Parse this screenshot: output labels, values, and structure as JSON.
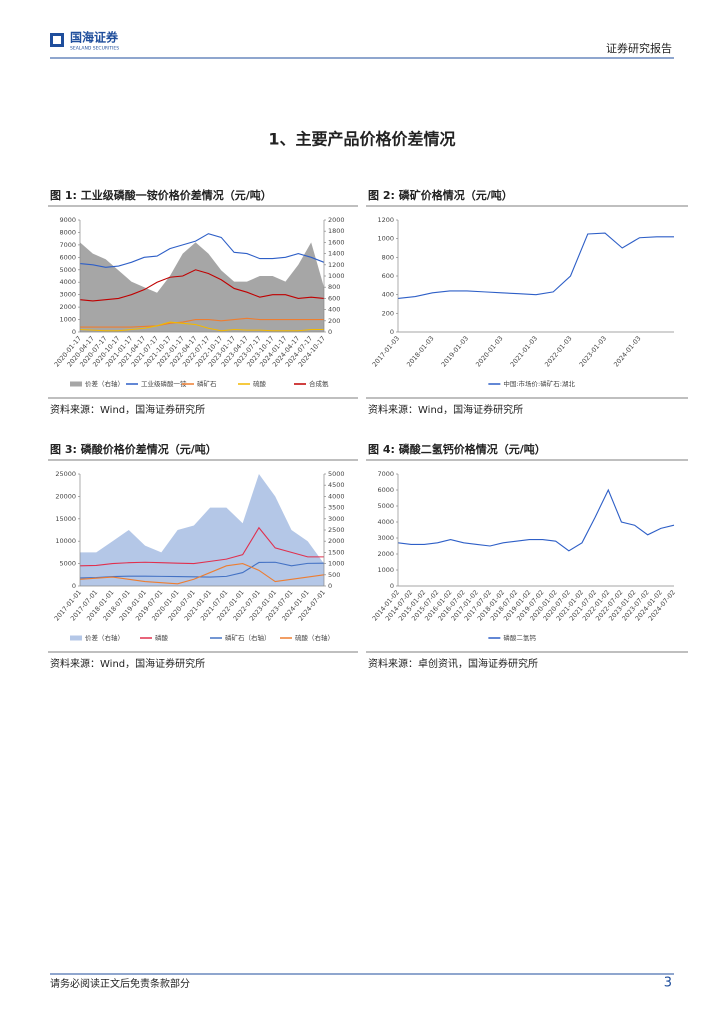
{
  "header": {
    "logo": "国海证券",
    "logo_sub": "SEALAND SECURITIES",
    "report_type": "证券研究报告"
  },
  "section_title": "1、主要产品价格价差情况",
  "chart_data": [
    {
      "type": "line",
      "title": "图 1:  工业级磷酸一铵价格价差情况（元/吨）",
      "source": "资料来源：Wind，国海证券研究所",
      "categories": [
        "2020-01-17",
        "2020-04-17",
        "2020-07-17",
        "2020-10-17",
        "2021-01-17",
        "2021-04-17",
        "2021-07-17",
        "2021-10-17",
        "2022-01-17",
        "2022-04-17",
        "2022-07-17",
        "2022-10-17",
        "2023-01-17",
        "2023-04-17",
        "2023-07-17",
        "2023-10-17",
        "2024-01-17",
        "2024-04-17",
        "2024-07-17",
        "2024-10-17"
      ],
      "ylim": [
        0,
        9000
      ],
      "yticks": [
        0,
        1000,
        2000,
        3000,
        4000,
        5000,
        6000,
        7000,
        8000,
        9000
      ],
      "y2lim": [
        0,
        2000
      ],
      "y2ticks": [
        0,
        200,
        400,
        600,
        800,
        1000,
        1200,
        1400,
        1600,
        1800,
        2000
      ],
      "series": [
        {
          "name": "价差（右轴）",
          "color": "#a6a6a6",
          "fill": true,
          "axis": "y2",
          "values": [
            1600,
            1400,
            1300,
            1100,
            900,
            800,
            700,
            1000,
            1400,
            1600,
            1400,
            1100,
            900,
            900,
            1000,
            1000,
            900,
            1200,
            1600,
            800
          ]
        },
        {
          "name": "工业级磷酸一铵",
          "color": "#2e5fc7",
          "values": [
            5500,
            5400,
            5200,
            5300,
            5600,
            6000,
            6100,
            6700,
            7000,
            7300,
            7900,
            7600,
            6400,
            6300,
            5900,
            5900,
            6000,
            6300,
            6000,
            5600
          ]
        },
        {
          "name": "磷矿石",
          "color": "#ed7d31",
          "values": [
            400,
            400,
            400,
            400,
            400,
            450,
            500,
            700,
            800,
            1000,
            1000,
            900,
            1000,
            1100,
            1000,
            1000,
            1000,
            1000,
            1000,
            1000
          ]
        },
        {
          "name": "硫酸",
          "color": "#f2b800",
          "values": [
            200,
            150,
            100,
            100,
            200,
            300,
            500,
            800,
            700,
            600,
            300,
            100,
            200,
            150,
            150,
            100,
            100,
            100,
            200,
            200
          ]
        },
        {
          "name": "合成氨",
          "color": "#c00000",
          "values": [
            2600,
            2500,
            2600,
            2700,
            3000,
            3400,
            4000,
            4400,
            4500,
            5000,
            4700,
            4200,
            3500,
            3200,
            2800,
            3000,
            3000,
            2700,
            2800,
            2700
          ]
        }
      ]
    },
    {
      "type": "line",
      "title": "图 2:  磷矿价格情况（元/吨）",
      "source": "资料来源：Wind，国海证券研究所",
      "categories": [
        "2017-01-03",
        null,
        "2018-01-03",
        null,
        "2019-01-03",
        null,
        "2020-01-03",
        null,
        "2021-01-03",
        null,
        "2022-01-03",
        null,
        "2023-01-03",
        null,
        "2024-01-03",
        null,
        null
      ],
      "ylim": [
        0,
        1200
      ],
      "yticks": [
        0,
        200,
        400,
        600,
        800,
        1000,
        1200
      ],
      "series": [
        {
          "name": "中国:市场价:磷矿石:湖北",
          "color": "#2e5fc7",
          "values": [
            360,
            380,
            420,
            440,
            440,
            430,
            420,
            410,
            400,
            430,
            600,
            1050,
            1060,
            900,
            1010,
            1020,
            1020
          ]
        }
      ]
    },
    {
      "type": "line",
      "title": "图 3:  磷酸价格价差情况（元/吨）",
      "source": "资料来源：Wind，国海证券研究所",
      "categories": [
        "2017-01-01",
        "2017-07-01",
        "2018-01-01",
        "2018-07-01",
        "2019-01-01",
        "2019-07-01",
        "2020-01-01",
        "2020-07-01",
        "2021-01-01",
        "2021-07-01",
        "2022-01-01",
        "2022-07-01",
        "2023-01-01",
        "2023-07-01",
        "2024-01-01",
        "2024-07-01"
      ],
      "ylim": [
        0,
        25000
      ],
      "yticks": [
        0,
        5000,
        10000,
        15000,
        20000,
        25000
      ],
      "y2lim": [
        0,
        5000
      ],
      "y2ticks": [
        0,
        500,
        1000,
        1500,
        2000,
        2500,
        3000,
        3500,
        4000,
        4500,
        5000
      ],
      "series": [
        {
          "name": "价差（右轴）",
          "color": "#b4c7e7",
          "fill": true,
          "axis": "y2",
          "values": [
            1500,
            1500,
            2000,
            2500,
            1800,
            1500,
            2500,
            2700,
            3500,
            3500,
            2800,
            5000,
            4000,
            2500,
            2000,
            1000
          ]
        },
        {
          "name": "磷酸",
          "color": "#e0304e",
          "values": [
            4500,
            4600,
            5000,
            5200,
            5300,
            5200,
            5100,
            5000,
            5500,
            6000,
            7000,
            13000,
            8500,
            7500,
            6500,
            6500
          ]
        },
        {
          "name": "磷矿石（右轴）",
          "color": "#4472c4",
          "axis": "y2",
          "values": [
            360,
            380,
            420,
            440,
            440,
            430,
            420,
            410,
            400,
            430,
            600,
            1050,
            1060,
            900,
            1010,
            1020
          ]
        },
        {
          "name": "硫酸（右轴）",
          "color": "#ed7d31",
          "axis": "y2",
          "values": [
            300,
            350,
            400,
            300,
            200,
            150,
            100,
            300,
            600,
            900,
            1000,
            700,
            200,
            300,
            400,
            500
          ]
        }
      ]
    },
    {
      "type": "line",
      "title": "图 4:  磷酸二氢钙价格情况（元/吨）",
      "source": "资料来源：卓创资讯，国海证券研究所",
      "categories": [
        "2014-01-02",
        "2014-07-02",
        "2015-01-02",
        "2015-07-02",
        "2016-01-02",
        "2016-07-02",
        "2017-01-02",
        "2017-07-02",
        "2018-01-02",
        "2018-07-02",
        "2019-01-02",
        "2019-07-02",
        "2020-01-02",
        "2020-07-02",
        "2021-01-02",
        "2021-07-02",
        "2022-01-02",
        "2022-07-02",
        "2023-01-02",
        "2023-07-02",
        "2024-01-02",
        "2024-07-02"
      ],
      "ylim": [
        0,
        7000
      ],
      "yticks": [
        0,
        1000,
        2000,
        3000,
        4000,
        5000,
        6000,
        7000
      ],
      "series": [
        {
          "name": "磷酸二氢钙",
          "color": "#2e5fc7",
          "values": [
            2700,
            2600,
            2600,
            2700,
            2900,
            2700,
            2600,
            2500,
            2700,
            2800,
            2900,
            2900,
            2800,
            2200,
            2700,
            4300,
            6000,
            4000,
            3800,
            3200,
            3600,
            3800
          ]
        }
      ]
    }
  ],
  "footer": {
    "disclaimer": "请务必阅读正文后免责条款部分",
    "page": "3"
  }
}
